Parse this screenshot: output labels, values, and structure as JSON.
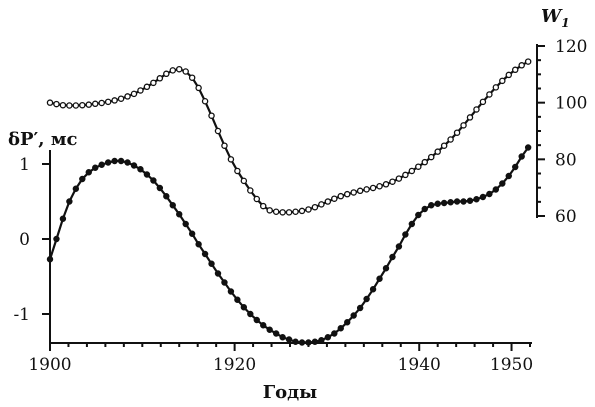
{
  "chart_data": {
    "type": "line",
    "title": "",
    "xlabel": "Годы",
    "ylabel_left": "δP′, мс",
    "ylabel_right": "W1",
    "ylabel_right_main": "W",
    "ylabel_right_sub": "1",
    "xlim": [
      1900,
      1952
    ],
    "ylim_left": [
      -1.45,
      1.45
    ],
    "ylim_right": [
      60,
      120
    ],
    "x_ticks": [
      1900,
      1920,
      1940,
      1950
    ],
    "y_left_ticks": [
      1,
      0,
      -1
    ],
    "y_right_ticks": [
      120,
      100,
      80,
      60
    ],
    "x_tick_labels": [
      "1900",
      "1920",
      "1940",
      "1950"
    ],
    "y_left_tick_labels": [
      "1",
      "0",
      "-1"
    ],
    "y_right_tick_labels": [
      "120",
      "100",
      "80",
      "60"
    ],
    "series": [
      {
        "axis": "right",
        "marker": "open-circle",
        "x": [
          1900.0,
          1900.7,
          1901.4,
          1902.1,
          1902.8,
          1903.5,
          1904.2,
          1904.9,
          1905.6,
          1906.3,
          1907.0,
          1907.7,
          1908.4,
          1909.1,
          1909.8,
          1910.5,
          1911.2,
          1911.9,
          1912.6,
          1913.3,
          1914.0,
          1914.7,
          1915.4,
          1916.1,
          1916.8,
          1917.5,
          1918.2,
          1918.9,
          1919.6,
          1920.3,
          1921.0,
          1921.7,
          1922.4,
          1923.1,
          1923.8,
          1924.5,
          1925.2,
          1925.9,
          1926.6,
          1927.3,
          1928.0,
          1928.7,
          1929.4,
          1930.1,
          1930.8,
          1931.5,
          1932.2,
          1932.9,
          1933.6,
          1934.3,
          1935.0,
          1935.7,
          1936.4,
          1937.1,
          1937.8,
          1938.5,
          1939.2,
          1939.9,
          1940.6,
          1941.3,
          1942.0,
          1942.7,
          1943.4,
          1944.1,
          1944.8,
          1945.5,
          1946.2,
          1946.9,
          1947.6,
          1948.3,
          1949.0,
          1949.7,
          1950.4,
          1951.1,
          1951.8
        ],
        "y": [
          100.0,
          99.5,
          99.1,
          99.0,
          99.0,
          99.1,
          99.3,
          99.6,
          99.9,
          100.3,
          100.8,
          101.4,
          102.2,
          103.1,
          104.3,
          105.6,
          107.0,
          108.6,
          110.2,
          111.4,
          111.8,
          111.0,
          108.8,
          105.2,
          100.5,
          95.4,
          90.0,
          84.8,
          80.0,
          75.9,
          72.4,
          69.0,
          66.0,
          63.5,
          62.0,
          61.5,
          61.3,
          61.3,
          61.5,
          61.8,
          62.3,
          63.1,
          64.1,
          65.1,
          66.1,
          67.0,
          67.7,
          68.3,
          68.9,
          69.4,
          69.9,
          70.5,
          71.2,
          72.1,
          73.2,
          74.5,
          75.9,
          77.4,
          79.0,
          80.8,
          82.7,
          84.8,
          87.0,
          89.4,
          92.0,
          94.8,
          97.6,
          100.3,
          102.9,
          105.4,
          107.7,
          109.8,
          111.6,
          113.2,
          114.5
        ]
      },
      {
        "axis": "left",
        "marker": "filled-circle",
        "x": [
          1900.0,
          1900.7,
          1901.4,
          1902.1,
          1902.8,
          1903.5,
          1904.2,
          1904.9,
          1905.6,
          1906.3,
          1907.0,
          1907.7,
          1908.4,
          1909.1,
          1909.8,
          1910.5,
          1911.2,
          1911.9,
          1912.6,
          1913.3,
          1914.0,
          1914.7,
          1915.4,
          1916.1,
          1916.8,
          1917.5,
          1918.2,
          1918.9,
          1919.6,
          1920.3,
          1921.0,
          1921.7,
          1922.4,
          1923.1,
          1923.8,
          1924.5,
          1925.2,
          1925.9,
          1926.6,
          1927.3,
          1928.0,
          1928.7,
          1929.4,
          1930.1,
          1930.8,
          1931.5,
          1932.2,
          1932.9,
          1933.6,
          1934.3,
          1935.0,
          1935.7,
          1936.4,
          1937.1,
          1937.8,
          1938.5,
          1939.2,
          1939.9,
          1940.6,
          1941.3,
          1942.0,
          1942.7,
          1943.4,
          1944.1,
          1944.8,
          1945.5,
          1946.2,
          1946.9,
          1947.6,
          1948.3,
          1949.0,
          1949.7,
          1950.4,
          1951.1,
          1951.8
        ],
        "y": [
          -0.27,
          0.0,
          0.27,
          0.5,
          0.67,
          0.8,
          0.89,
          0.95,
          0.99,
          1.02,
          1.04,
          1.04,
          1.02,
          0.98,
          0.93,
          0.86,
          0.78,
          0.68,
          0.57,
          0.45,
          0.33,
          0.2,
          0.07,
          -0.07,
          -0.2,
          -0.33,
          -0.46,
          -0.58,
          -0.7,
          -0.81,
          -0.91,
          -1.0,
          -1.08,
          -1.15,
          -1.21,
          -1.26,
          -1.31,
          -1.34,
          -1.37,
          -1.38,
          -1.38,
          -1.37,
          -1.35,
          -1.31,
          -1.26,
          -1.19,
          -1.11,
          -1.02,
          -0.92,
          -0.8,
          -0.67,
          -0.53,
          -0.39,
          -0.24,
          -0.1,
          0.06,
          0.2,
          0.32,
          0.4,
          0.45,
          0.47,
          0.48,
          0.49,
          0.5,
          0.5,
          0.51,
          0.53,
          0.56,
          0.6,
          0.66,
          0.74,
          0.84,
          0.96,
          1.1,
          1.22
        ]
      }
    ]
  }
}
